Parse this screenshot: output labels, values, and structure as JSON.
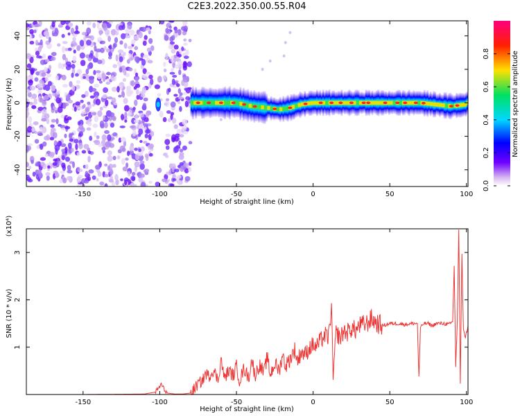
{
  "title": "C2E3.2022.350.00.55.R04",
  "chart_data": [
    {
      "type": "heatmap",
      "xlabel": "Height of straight line (km)",
      "ylabel": "Frequency (Hz)",
      "xlim": [
        -187,
        101
      ],
      "ylim": [
        -50,
        49
      ],
      "xticks": [
        -150,
        -100,
        -50,
        0,
        50,
        100
      ],
      "yticks": [
        -40,
        -20,
        0,
        20,
        40
      ],
      "colorbar": {
        "label": "Normalized spectral amplitude",
        "range": [
          0,
          1
        ],
        "ticks": [
          "0.0",
          "0.2",
          "0.4",
          "0.6",
          "0.8"
        ],
        "colormap": [
          "#ffffff",
          "#d8b8f0",
          "#7000ff",
          "#0000ff",
          "#00d8ff",
          "#00e060",
          "#ffe000",
          "#ff2000",
          "#ff0080"
        ]
      },
      "features": {
        "noise_region_km": [
          -187,
          -80
        ],
        "gap_region_km": [
          -105,
          -97
        ],
        "signal_start_km": -80,
        "signal_end_km": 101,
        "signal_frequency_hz": [
          [
            -80,
            0
          ],
          [
            -70,
            0
          ],
          [
            -60,
            0
          ],
          [
            -50,
            0
          ],
          [
            -40,
            -2
          ],
          [
            -30,
            -3
          ],
          [
            -22,
            -4
          ],
          [
            -15,
            -3
          ],
          [
            -8,
            -1
          ],
          [
            0,
            0
          ],
          [
            20,
            0
          ],
          [
            40,
            0
          ],
          [
            60,
            0
          ],
          [
            70,
            0
          ],
          [
            80,
            -1
          ],
          [
            90,
            -2
          ],
          [
            100,
            -1
          ]
        ]
      }
    },
    {
      "type": "line",
      "xlabel": "Height of straight line (km)",
      "ylabel": "SNR (10 * v/v)",
      "scale_label": "(x10⁴)",
      "xlim": [
        -187,
        101
      ],
      "ylim": [
        0,
        3.5
      ],
      "xticks": [
        -150,
        -100,
        -50,
        0,
        50,
        100
      ],
      "yticks": [
        1,
        2,
        3
      ],
      "color": "#ee3333",
      "series": [
        {
          "x": [
            -187,
            -150,
            -110,
            -103,
            -101,
            -99,
            -97,
            -95,
            -90,
            -85,
            -80,
            -78,
            -75,
            -72,
            -70,
            -68,
            -65,
            -62,
            -60,
            -58,
            -55,
            -52,
            -50,
            -48,
            -45,
            -42,
            -40,
            -38,
            -35,
            -32,
            -30,
            -28,
            -25,
            -22,
            -20,
            -18,
            -15,
            -12,
            -10,
            -8,
            -5,
            -2,
            0,
            2,
            5,
            8,
            10,
            12,
            13,
            15,
            18,
            20,
            22,
            25,
            28,
            30,
            35,
            38,
            40,
            42,
            45,
            50,
            55,
            60,
            65,
            68,
            69,
            70,
            72,
            75,
            78,
            80,
            85,
            88,
            90,
            91,
            92,
            93,
            94,
            95,
            96,
            97,
            98,
            99,
            100,
            101
          ],
          "y": [
            0,
            0,
            0.01,
            0.05,
            0.12,
            0.22,
            0.1,
            0.03,
            0.01,
            0.01,
            0.03,
            0.1,
            0.22,
            0.3,
            0.45,
            0.38,
            0.52,
            0.3,
            0.75,
            0.35,
            0.5,
            0.4,
            0.6,
            0.3,
            0.55,
            0.35,
            0.75,
            0.4,
            0.62,
            0.45,
            0.8,
            0.42,
            0.65,
            0.5,
            0.85,
            0.6,
            0.75,
            0.95,
            0.7,
            0.9,
            0.85,
            1.0,
            1.05,
            1.0,
            1.15,
            1.25,
            1.2,
            1.85,
            0.35,
            1.3,
            1.2,
            1.35,
            1.3,
            1.4,
            1.35,
            1.45,
            1.5,
            1.6,
            1.55,
            1.5,
            1.45,
            1.5,
            1.5,
            1.48,
            1.5,
            1.5,
            0.35,
            1.4,
            1.5,
            1.5,
            1.45,
            1.5,
            1.5,
            1.48,
            1.5,
            1.55,
            2.7,
            0.6,
            1.5,
            3.5,
            0.2,
            3.0,
            1.4,
            1.2,
            1.3,
            1.45
          ]
        }
      ]
    }
  ]
}
